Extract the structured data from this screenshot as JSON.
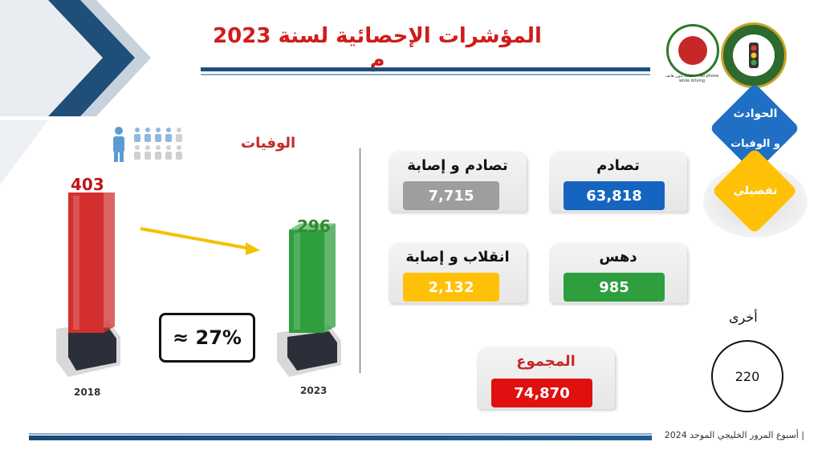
{
  "header": {
    "title": "المؤشرات الإحصائية لسنة 2023 م",
    "logo_caption": "قيادة بدون هاتف — No phone while driving"
  },
  "deaths_chart": {
    "title": "الوفيات",
    "change_text": "≈ 27%",
    "icon": "person-icon"
  },
  "chart_data": {
    "type": "bar",
    "categories": [
      "2018",
      "2023"
    ],
    "values": [
      403,
      296
    ],
    "title": "الوفيات",
    "colors": [
      "#d32f2f",
      "#2e9e3e"
    ]
  },
  "stats": {
    "collision": {
      "label": "تصادم",
      "value": "63,818",
      "color": "#1565c0"
    },
    "collision_injury": {
      "label": "تصادم و إصابة",
      "value": "7,715",
      "color": "#9e9e9e"
    },
    "runover": {
      "label": "دهس",
      "value": "985",
      "color": "#2e9e3e"
    },
    "rollover_injury": {
      "label": "انقلاب و إصابة",
      "value": "2,132",
      "color": "#ffc107"
    },
    "total": {
      "label": "المجموع",
      "value": "74,870",
      "color": "#e01010"
    }
  },
  "nav": {
    "accidents_deaths_line1": "الحوادث",
    "accidents_deaths_line2": "و الوفيات",
    "detailed": "تفصيلي"
  },
  "other": {
    "label": "أخرى",
    "value": "220"
  },
  "footer": {
    "text": "| أسبوع المرور الخليجي الموحد 2024"
  }
}
